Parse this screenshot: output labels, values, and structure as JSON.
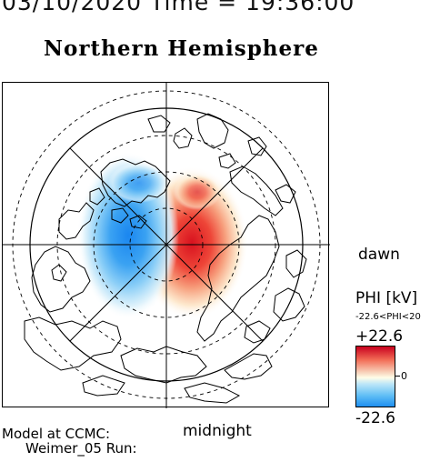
{
  "header": {
    "time_line": "03/10/2020 Time = 19:36:00",
    "title": "Northern Hemisphere"
  },
  "map": {
    "dawn_label": "dawn",
    "midnight_label": "midnight"
  },
  "model": {
    "line1": "Model at CCMC:",
    "line2": "Weimer_05 Run:"
  },
  "colorbar": {
    "title": "PHI [kV]",
    "range_text": "-22.6<PHI<20",
    "max_label": "+22.6",
    "zero_label": "0",
    "min_label": "-22.6",
    "colors": {
      "positive": "#d8121f",
      "neutral": "#fffde8",
      "negative": "#1f8ff0"
    }
  }
}
